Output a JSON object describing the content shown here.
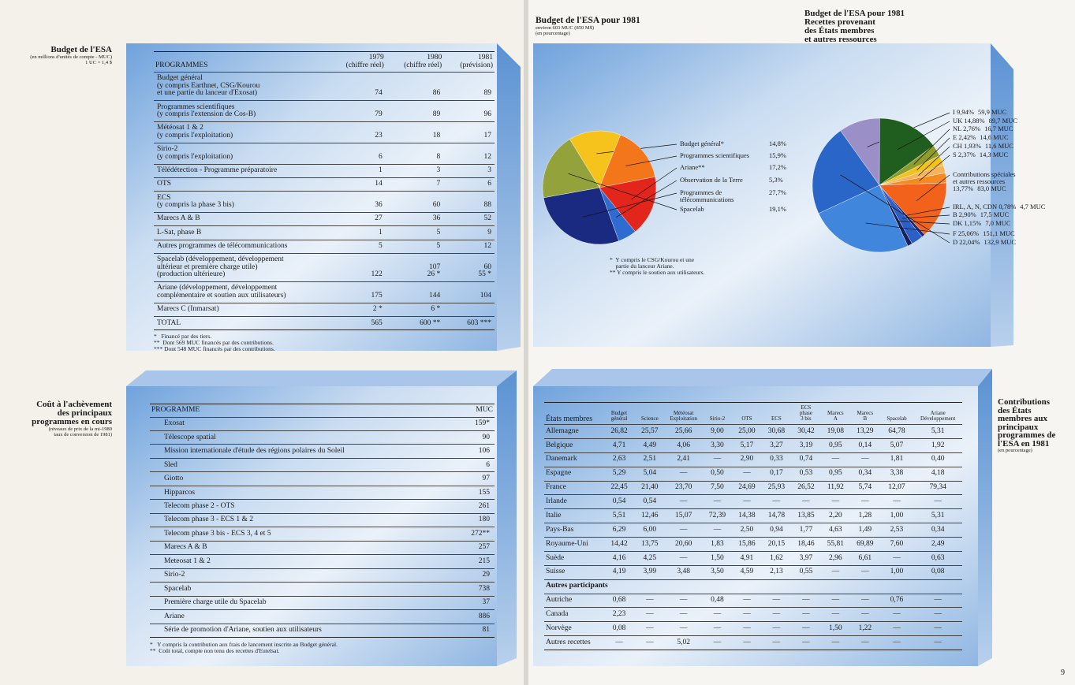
{
  "left_page": {
    "budget": {
      "heading": "Budget de l'ESA",
      "subheading": "(en millions d'unités de compte - MUC)",
      "note": "1 UC = 1,4 $",
      "columns": [
        "PROGRAMMES",
        "1979\n(chiffre réel)",
        "1980\n(chiffre réel)",
        "1981\n(prévision)"
      ],
      "rows": [
        [
          "Budget général\n(y compris Earthnet, CSG/Kourou\net une partie du lanceur d'Exosat)",
          "74",
          "86",
          "89"
        ],
        [
          "Programmes scientifiques\n(y compris l'extension de Cos-B)",
          "79",
          "89",
          "96"
        ],
        [
          "Météosat 1 & 2\n(y compris l'exploitation)",
          "23",
          "18",
          "17"
        ],
        [
          "Sirio-2\n(y compris l'exploitation)",
          "6",
          "8",
          "12"
        ],
        [
          "Télédétection - Programme préparatoire",
          "1",
          "3",
          "3"
        ],
        [
          "OTS",
          "14",
          "7",
          "6"
        ],
        [
          "ECS\n(y compris la phase 3 bis)",
          "36",
          "60",
          "88"
        ],
        [
          "Marecs A & B",
          "27",
          "36",
          "52"
        ],
        [
          "L-Sat, phase B",
          "1",
          "5",
          "9"
        ],
        [
          "Autres programmes de télécommunications",
          "5",
          "5",
          "12"
        ],
        [
          "Spacelab (développement, développement\nultérieur et première charge utile)\n(production ultérieure)",
          "122",
          "107\n26 *",
          "60\n55 *"
        ],
        [
          "Ariane (développement, développement\ncomplémentaire et soutien aux utilisateurs)",
          "175",
          "144",
          "104"
        ],
        [
          "Marecs C (Inmarsat)",
          "2 *",
          "6 *",
          null
        ],
        [
          "TOTAL",
          "565",
          "600 **",
          "603 ***"
        ]
      ],
      "footnotes": [
        "*   Financé par des tiers.",
        "**  Dont 569 MUC financés par des contributions.",
        "*** Dont 548 MUC financés par des contributions."
      ]
    },
    "costs": {
      "heading": "Coût à l'achèvement\ndes principaux\nprogrammes en cours",
      "subheading": "(niveaux de prix de la mi-1980\ntaux de conversion de 1981)",
      "columns": [
        "PROGRAMME",
        "MUC"
      ],
      "rows": [
        [
          "Exosat",
          "159*"
        ],
        [
          "Télescope spatial",
          "90"
        ],
        [
          "Mission internationale d'étude des régions polaires du Soleil",
          "106"
        ],
        [
          "Sled",
          "6"
        ],
        [
          "Giotto",
          "97"
        ],
        [
          "Hipparcos",
          "155"
        ],
        [
          "Telecom phase 2 - OTS",
          "261"
        ],
        [
          "Telecom phase 3 - ECS 1 & 2",
          "180"
        ],
        [
          "Telecom phase 3 bis - ECS 3, 4 et 5",
          "272**"
        ],
        [
          "Marecs A & B",
          "257"
        ],
        [
          "Meteosat 1 & 2",
          "215"
        ],
        [
          "Sirio-2",
          "29"
        ],
        [
          "Spacelab",
          "738"
        ],
        [
          "Première charge utile du Spacelab",
          "37"
        ],
        [
          "Ariane",
          "886"
        ],
        [
          "Série de promotion d'Ariane, soutien aux utilisateurs",
          "81"
        ]
      ],
      "footnotes": [
        "*   Y compris la contribution aux frais de lancement inscrite au Budget général.",
        "**  Coût total, compte non tenu des recettes d'Eutelsat."
      ]
    }
  },
  "right_page": {
    "pie_budget": {
      "type": "pie",
      "title": "Budget de l'ESA pour 1981",
      "subtitle": "environ 603 MUC (850 M$)",
      "unit_note": "(en pourcentage)",
      "categories": [
        "Budget général*",
        "Programmes scientifiques",
        "Ariane**",
        "Observation de la Terre",
        "Programmes de\ntélécommunications",
        "Spacelab"
      ],
      "values": [
        14.8,
        15.9,
        17.2,
        5.3,
        27.7,
        19.1
      ],
      "value_labels": [
        "14,8%",
        "15,9%",
        "17,2%",
        "5,3%",
        "27,7%",
        "19,1%"
      ],
      "colors": [
        "#f6c21c",
        "#f3761a",
        "#e2261c",
        "#2f6cd2",
        "#1a2a80",
        "#93a23a"
      ],
      "footnotes": [
        "*  Y compris le CSG/Kourou et une\n    partie du lanceur Ariane.",
        "** Y compris le soutien aux utilisateurs."
      ]
    },
    "pie_revenue": {
      "type": "pie",
      "title": "Budget de l'ESA pour 1981\nRecettes provenant\ndes États membres\net autres ressources",
      "categories": [
        "I",
        "UK",
        "NL",
        "E",
        "CH",
        "S",
        "Contributions spéciales\net autres ressources",
        "IRL, A, N, CDN",
        "B",
        "DK",
        "F",
        "D"
      ],
      "values": [
        9.94,
        14.88,
        2.76,
        2.42,
        1.93,
        2.37,
        13.77,
        0.78,
        2.9,
        1.15,
        25.06,
        22.04
      ],
      "value_labels": [
        "9,94%",
        "14,88%",
        "2,76%",
        "2,42%",
        "1,93%",
        "2,37%",
        "13,77%",
        "0,78%",
        "2,90%",
        "1,15%",
        "25,06%",
        "22,04%"
      ],
      "amounts": [
        "59,9 MUC",
        "89,7 MUC",
        "16,7 MUC",
        "14,6 MUC",
        "11,6 MUC",
        "14,3 MUC",
        "83,0 MUC",
        "4,7 MUC",
        "17,5 MUC",
        "7,0 MUC",
        "151,1 MUC",
        "132,9 MUC"
      ],
      "colors": [
        "#9b8fc8",
        "#1f5e1e",
        "#8f9b2a",
        "#f4c21c",
        "#f7b35c",
        "#f58a22",
        "#f2621a",
        "#1a2a80",
        "#2d5fc8",
        "#16205e",
        "#3f86dc",
        "#2a66c8"
      ]
    },
    "contributions": {
      "heading": "Contributions\ndes États\nmembres aux\nprincipaux\nprogrammes de\nl'ESA en 1981",
      "subheading": "(en pourcentage)",
      "columns": [
        "États membres",
        "Budget\ngénéral",
        "Science",
        "Météosat\nExploitation",
        "Sirio-2",
        "OTS",
        "ECS",
        "ECS\nphase\n3 bis",
        "Marecs\nA",
        "Marecs\nB",
        "Spacelab",
        "Ariane\nDéveloppement"
      ],
      "rows": [
        [
          "Allemagne",
          "26,82",
          "25,57",
          "25,66",
          "9,00",
          "25,00",
          "30,68",
          "30,42",
          "19,08",
          "13,29",
          "64,78",
          "5,31"
        ],
        [
          "Belgique",
          "4,71",
          "4,49",
          "4,06",
          "3,30",
          "5,17",
          "3,27",
          "3,19",
          "0,95",
          "0,14",
          "5,07",
          "1,92"
        ],
        [
          "Danemark",
          "2,63",
          "2,51",
          "2,41",
          "—",
          "2,90",
          "0,33",
          "0,74",
          "—",
          "—",
          "1,81",
          "0,40"
        ],
        [
          "Espagne",
          "5,29",
          "5,04",
          "—",
          "0,50",
          "—",
          "0,17",
          "0,53",
          "0,95",
          "0,34",
          "3,38",
          "4,18"
        ],
        [
          "France",
          "22,45",
          "21,40",
          "23,70",
          "7,50",
          "24,69",
          "25,93",
          "26,52",
          "11,92",
          "5,74",
          "12,07",
          "79,34"
        ],
        [
          "Irlande",
          "0,54",
          "0,54",
          "—",
          "—",
          "—",
          "—",
          "—",
          "—",
          "—",
          "—",
          "—"
        ],
        [
          "Italie",
          "5,51",
          "12,46",
          "15,07",
          "72,39",
          "14,38",
          "14,78",
          "13,85",
          "2,20",
          "1,28",
          "1,00",
          "5,31"
        ],
        [
          "Pays-Bas",
          "6,29",
          "6,00",
          "—",
          "—",
          "2,50",
          "0,94",
          "1,77",
          "4,63",
          "1,49",
          "2,53",
          "0,34"
        ],
        [
          "Royaume-Uni",
          "14,42",
          "13,75",
          "20,60",
          "1,83",
          "15,86",
          "20,15",
          "18,46",
          "55,81",
          "69,89",
          "7,60",
          "2,49"
        ],
        [
          "Suède",
          "4,16",
          "4,25",
          "—",
          "1,50",
          "4,91",
          "1,62",
          "3,97",
          "2,96",
          "6,61",
          "—",
          "0,63"
        ],
        [
          "Suisse",
          "4,19",
          "3,99",
          "3,48",
          "3,50",
          "4,59",
          "2,13",
          "0,55",
          "—",
          "—",
          "1,00",
          "0,08"
        ],
        [
          "Autres participants"
        ],
        [
          "Autriche",
          "0,68",
          "—",
          "—",
          "0,48",
          "—",
          "—",
          "—",
          "—",
          "—",
          "0,76",
          "—"
        ],
        [
          "Canada",
          "2,23",
          "—",
          "—",
          "—",
          "—",
          "—",
          "—",
          "—",
          "—",
          "—",
          "—"
        ],
        [
          "Norvège",
          "0,08",
          "—",
          "—",
          "—",
          "—",
          "—",
          "—",
          "1,50",
          "1,22",
          "—",
          "—"
        ],
        [
          "Autres recettes",
          "—",
          "—",
          "5,02",
          "—",
          "—",
          "—",
          "—",
          "—",
          "—",
          "—",
          "—"
        ]
      ]
    },
    "page_number": "9"
  }
}
